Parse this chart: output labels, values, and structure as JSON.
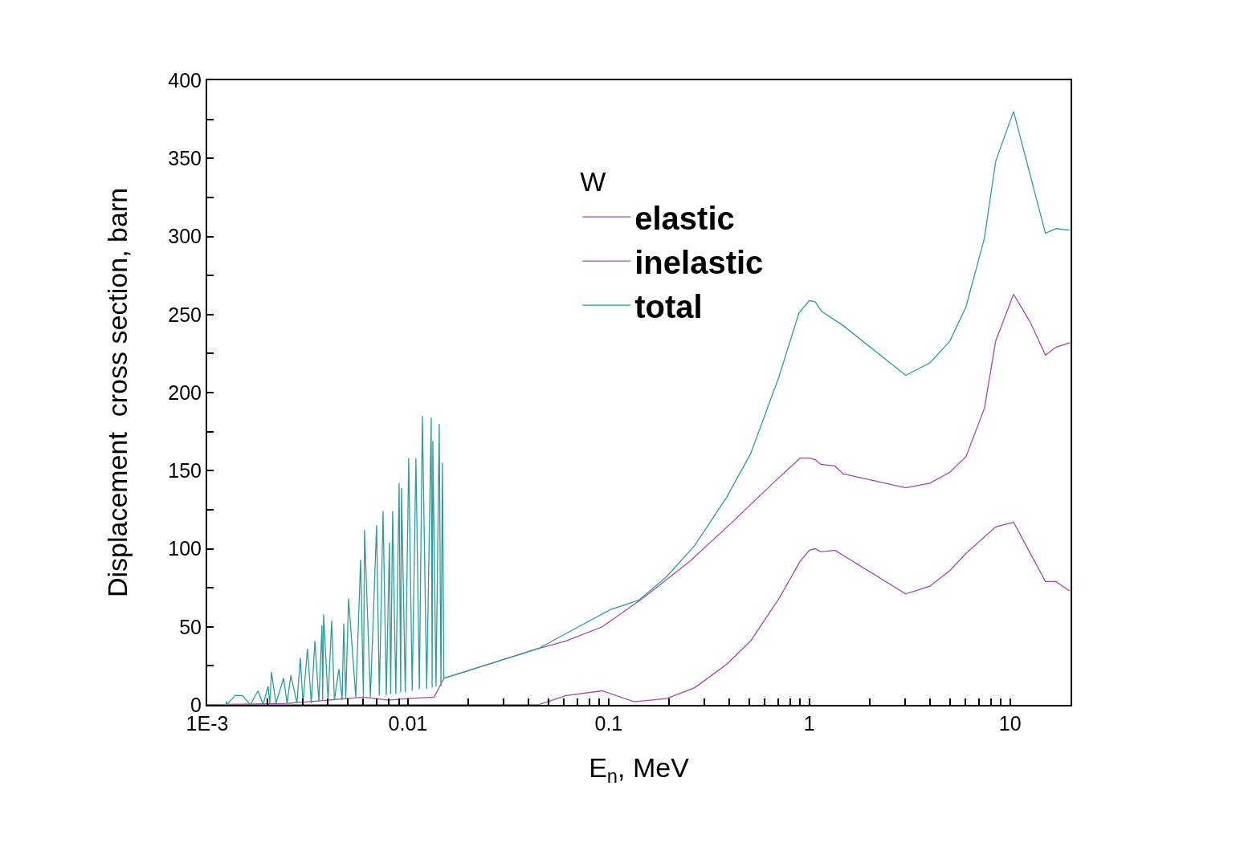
{
  "chart_data": {
    "type": "line",
    "xlabel": "E$_{n}$, MeV",
    "ylabel": "Displacement  cross section, barn",
    "legend_title": "W",
    "log": "x",
    "grid": false,
    "marker": "none",
    "line_style": "solid",
    "legend": "top",
    "xlim": [
      0.001,
      20
    ],
    "xticks": [
      {
        "value": 0.001,
        "label": "1E-3"
      },
      {
        "value": 0.002,
        "label": null
      },
      {
        "value": 0.003,
        "label": null
      },
      {
        "value": 0.004,
        "label": null
      },
      {
        "value": 0.005,
        "label": null
      },
      {
        "value": 0.006,
        "label": null
      },
      {
        "value": 0.007,
        "label": null
      },
      {
        "value": 0.008,
        "label": null
      },
      {
        "value": 0.009,
        "label": null
      },
      0.01,
      {
        "value": 0.02,
        "label": null
      },
      {
        "value": 0.03,
        "label": null
      },
      {
        "value": 0.04,
        "label": null
      },
      {
        "value": 0.05,
        "label": null
      },
      {
        "value": 0.06,
        "label": null
      },
      {
        "value": 0.07,
        "label": null
      },
      {
        "value": 0.08,
        "label": null
      },
      {
        "value": 0.09,
        "label": null
      },
      0.1,
      {
        "value": 0.2,
        "label": null
      },
      {
        "value": 0.3,
        "label": null
      },
      {
        "value": 0.4,
        "label": null
      },
      {
        "value": 0.5,
        "label": null
      },
      {
        "value": 0.6,
        "label": null
      },
      {
        "value": 0.7,
        "label": null
      },
      {
        "value": 0.8,
        "label": null
      },
      {
        "value": 0.9,
        "label": null
      },
      1,
      {
        "value": 2,
        "label": null
      },
      {
        "value": 3,
        "label": null
      },
      {
        "value": 4,
        "label": null
      },
      {
        "value": 5,
        "label": null
      },
      {
        "value": 6,
        "label": null
      },
      {
        "value": 7,
        "label": null
      },
      {
        "value": 8,
        "label": null
      },
      {
        "value": 9,
        "label": null
      },
      10,
      {
        "value": 20,
        "label": null
      }
    ],
    "ylim": [
      0,
      400
    ],
    "yticks": [
      0,
      {
        "value": 25,
        "label": null
      },
      50,
      {
        "value": 75,
        "label": null
      },
      100,
      {
        "value": 125,
        "label": null
      },
      150,
      {
        "value": 175,
        "label": null
      },
      200,
      {
        "value": 225,
        "label": null
      },
      250,
      {
        "value": 275,
        "label": null
      },
      300,
      {
        "value": 325,
        "label": null
      },
      350,
      {
        "value": 375,
        "label": null
      },
      400
    ],
    "series": [
      {
        "name": "elastic",
        "color": "#a846ac",
        "x": [
          0.001,
          0.0025,
          0.004,
          0.006,
          0.008,
          0.01,
          0.0135,
          0.0151,
          0.0445,
          0.0614,
          0.0929,
          0.147,
          0.254,
          0.405,
          0.671,
          0.899,
          1.0,
          1.07,
          1.14,
          1.34,
          1.47,
          3.02,
          3.98,
          5.01,
          6.03,
          7.45,
          8.47,
          10.4,
          12.6,
          15.0,
          16.9,
          19.8
        ],
        "values": [
          0,
          1,
          3,
          5,
          3,
          4,
          5,
          17,
          36,
          41,
          50,
          68,
          92,
          116,
          143,
          158,
          158,
          157,
          154,
          153,
          148,
          139,
          142,
          149,
          159,
          190,
          233,
          263,
          245,
          224,
          229,
          232
        ]
      },
      {
        "name": "inelastic",
        "color": "#a846ac",
        "x": [
          0.001,
          0.0445,
          0.0614,
          0.0929,
          0.134,
          0.194,
          0.268,
          0.387,
          0.51,
          0.705,
          0.899,
          1.0,
          1.07,
          1.14,
          1.34,
          3.02,
          3.98,
          5.01,
          6.03,
          8.47,
          10.4,
          15.0,
          16.9,
          19.8
        ],
        "values": [
          0,
          0,
          6,
          9,
          2,
          4,
          11,
          26,
          41,
          68,
          92,
          99,
          100,
          98,
          99,
          71,
          76,
          86,
          97,
          114,
          117,
          79,
          79,
          73
        ]
      },
      {
        "name": "total",
        "color": "#2e9c9c",
        "x": [
          0.001,
          0.00124,
          0.001247,
          0.00125,
          0.00138,
          0.0015,
          0.00164,
          0.00179,
          0.0019,
          0.00201,
          0.00205,
          0.00209,
          0.0022,
          0.0024,
          0.0025,
          0.00261,
          0.0028,
          0.00291,
          0.003,
          0.00316,
          0.0033,
          0.00344,
          0.0036,
          0.00373,
          0.00376,
          0.0038,
          0.004,
          0.00417,
          0.0043,
          0.00453,
          0.0047,
          0.00479,
          0.0049,
          0.00506,
          0.0055,
          0.00581,
          0.006,
          0.00608,
          0.0065,
          0.00698,
          0.0072,
          0.00752,
          0.0078,
          0.00809,
          0.0082,
          0.00839,
          0.0087,
          0.00904,
          0.0092,
          0.00929,
          0.0097,
          0.01009,
          0.0105,
          0.01096,
          0.0114,
          0.0118,
          0.0124,
          0.01306,
          0.0132,
          0.0133,
          0.0138,
          0.01432,
          0.0146,
          0.01486,
          0.0151,
          0.0445,
          0.102,
          0.141,
          0.194,
          0.268,
          0.387,
          0.51,
          0.705,
          0.887,
          1.0,
          1.07,
          1.15,
          1.47,
          3.02,
          3.98,
          5.01,
          6.03,
          7.45,
          8.47,
          10.4,
          15.0,
          16.9,
          19.8
        ],
        "values": [
          0,
          0,
          2.4,
          0,
          6,
          6,
          0,
          9,
          0,
          12,
          1,
          21,
          1,
          17,
          1,
          19,
          1,
          30,
          1,
          36,
          1,
          41,
          2,
          51,
          3,
          58,
          3,
          54,
          3,
          23,
          3,
          52,
          4,
          68,
          5,
          93,
          5,
          112,
          5,
          115,
          6,
          124,
          6,
          104,
          7,
          124,
          7,
          142,
          8,
          139,
          8,
          158,
          9,
          158,
          10,
          185,
          10,
          184,
          11,
          169,
          12,
          180,
          12,
          155,
          17,
          36,
          61,
          67,
          82,
          102,
          133,
          161,
          210,
          251,
          259,
          258,
          252,
          243,
          211,
          219,
          233,
          255,
          299,
          348,
          380,
          302,
          305,
          304
        ]
      }
    ]
  }
}
